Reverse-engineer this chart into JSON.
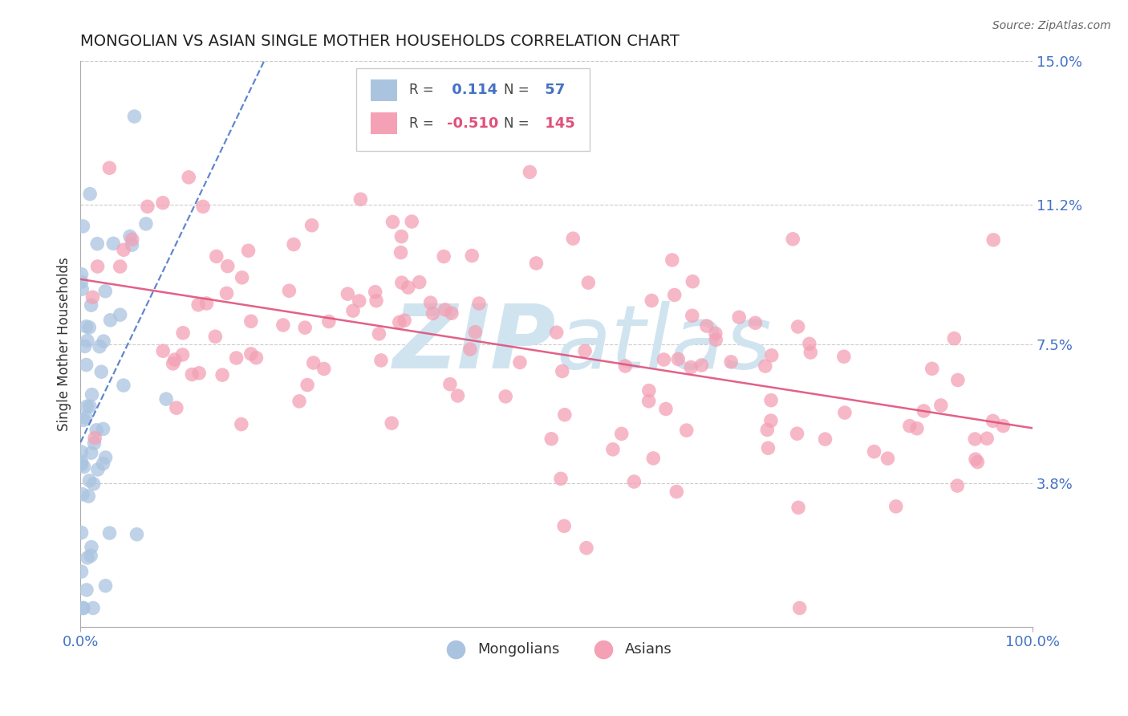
{
  "title": "MONGOLIAN VS ASIAN SINGLE MOTHER HOUSEHOLDS CORRELATION CHART",
  "source": "Source: ZipAtlas.com",
  "ylabel": "Single Mother Households",
  "mongolian_R": 0.114,
  "mongolian_N": 57,
  "asian_R": -0.51,
  "asian_N": 145,
  "xlim": [
    0.0,
    1.0
  ],
  "ylim": [
    0.0,
    0.15
  ],
  "yticks": [
    0.038,
    0.075,
    0.112,
    0.15
  ],
  "ytick_labels": [
    "3.8%",
    "7.5%",
    "11.2%",
    "15.0%"
  ],
  "xtick_labels": [
    "0.0%",
    "100.0%"
  ],
  "xticks": [
    0.0,
    1.0
  ],
  "mongolian_color": "#aac4e0",
  "asian_color": "#f4a0b5",
  "mongolian_line_color": "#4472c4",
  "asian_line_color": "#e0507a",
  "watermark_top": "ZIP",
  "watermark_bot": "atlas",
  "watermark_color": "#d0e4f0",
  "background_color": "#ffffff",
  "grid_color": "#cccccc",
  "title_color": "#222222",
  "axis_label_color": "#333333",
  "tick_label_color": "#4472c4",
  "source_color": "#666666",
  "legend_edge_color": "#cccccc"
}
